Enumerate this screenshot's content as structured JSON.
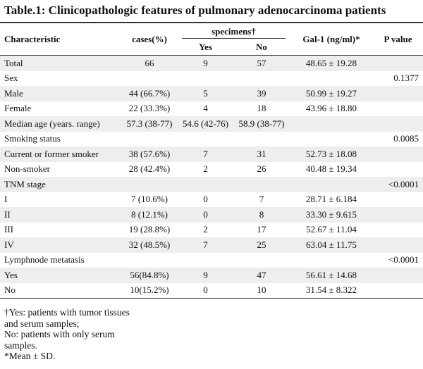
{
  "title": "Table.1: Clinicopathologic features of pulmonary adenocarcinoma patients",
  "headers": {
    "characteristic": "Characteristic",
    "cases": "cases(%)",
    "specimens": "specimens†",
    "yes": "Yes",
    "no": "No",
    "gal1": "Gal-1 (ng/ml)*",
    "pvalue": "P value"
  },
  "rows": [
    {
      "label": "Total",
      "cases": "66",
      "yes": "9",
      "no": "57",
      "gal1": "48.65 ± 19.28",
      "p": ""
    },
    {
      "label": "Sex",
      "cases": "",
      "yes": "",
      "no": "",
      "gal1": "",
      "p": "0.1377"
    },
    {
      "label": "Male",
      "cases": "44 (66.7%)",
      "yes": "5",
      "no": "39",
      "gal1": "50.99 ± 19.27",
      "p": ""
    },
    {
      "label": "Female",
      "cases": "22 (33.3%)",
      "yes": "4",
      "no": "18",
      "gal1": "43.96 ± 18.80",
      "p": ""
    },
    {
      "label": "Median age (years. range)",
      "cases": "57.3 (38-77)",
      "yes": "54.6 (42-76)",
      "no": "58.9 (38-77)",
      "gal1": "",
      "p": ""
    },
    {
      "label": "Smoking status",
      "cases": "",
      "yes": "",
      "no": "",
      "gal1": "",
      "p": "0.0085"
    },
    {
      "label": "Current or former smoker",
      "cases": "38 (57.6%)",
      "yes": "7",
      "no": "31",
      "gal1": "52.73 ± 18.08",
      "p": ""
    },
    {
      "label": "Non-smoker",
      "cases": "28 (42.4%)",
      "yes": "2",
      "no": "26",
      "gal1": "40.48 ± 19.34",
      "p": ""
    },
    {
      "label": "TNM stage",
      "cases": "",
      "yes": "",
      "no": "",
      "gal1": "",
      "p": "<0.0001"
    },
    {
      "label": "I",
      "cases": "7 (10.6%)",
      "yes": "0",
      "no": "7",
      "gal1": "28.71 ± 6.184",
      "p": ""
    },
    {
      "label": "II",
      "cases": "8 (12.1%)",
      "yes": "0",
      "no": "8",
      "gal1": "33.30 ± 9.615",
      "p": ""
    },
    {
      "label": "III",
      "cases": "19 (28.8%)",
      "yes": "2",
      "no": "17",
      "gal1": "52.67 ± 11.04",
      "p": ""
    },
    {
      "label": "IV",
      "cases": "32 (48.5%)",
      "yes": "7",
      "no": "25",
      "gal1": "63.04 ± 11.75",
      "p": ""
    },
    {
      "label": "Lymphnode metatasis",
      "cases": "",
      "yes": "",
      "no": "",
      "gal1": "",
      "p": "<0.0001"
    },
    {
      "label": "Yes",
      "cases": "56(84.8%)",
      "yes": "9",
      "no": "47",
      "gal1": "56.61 ± 14.68",
      "p": ""
    },
    {
      "label": "No",
      "cases": "10(15.2%)",
      "yes": "0",
      "no": "10",
      "gal1": "31.54 ± 8.322",
      "p": ""
    }
  ],
  "notes": {
    "line1": "†Yes: patients with tumor tissues",
    "line2": "and serum samples;",
    "line3": "No: patients with only serum",
    "line4": "samples.",
    "line5": "*Mean ± SD."
  }
}
